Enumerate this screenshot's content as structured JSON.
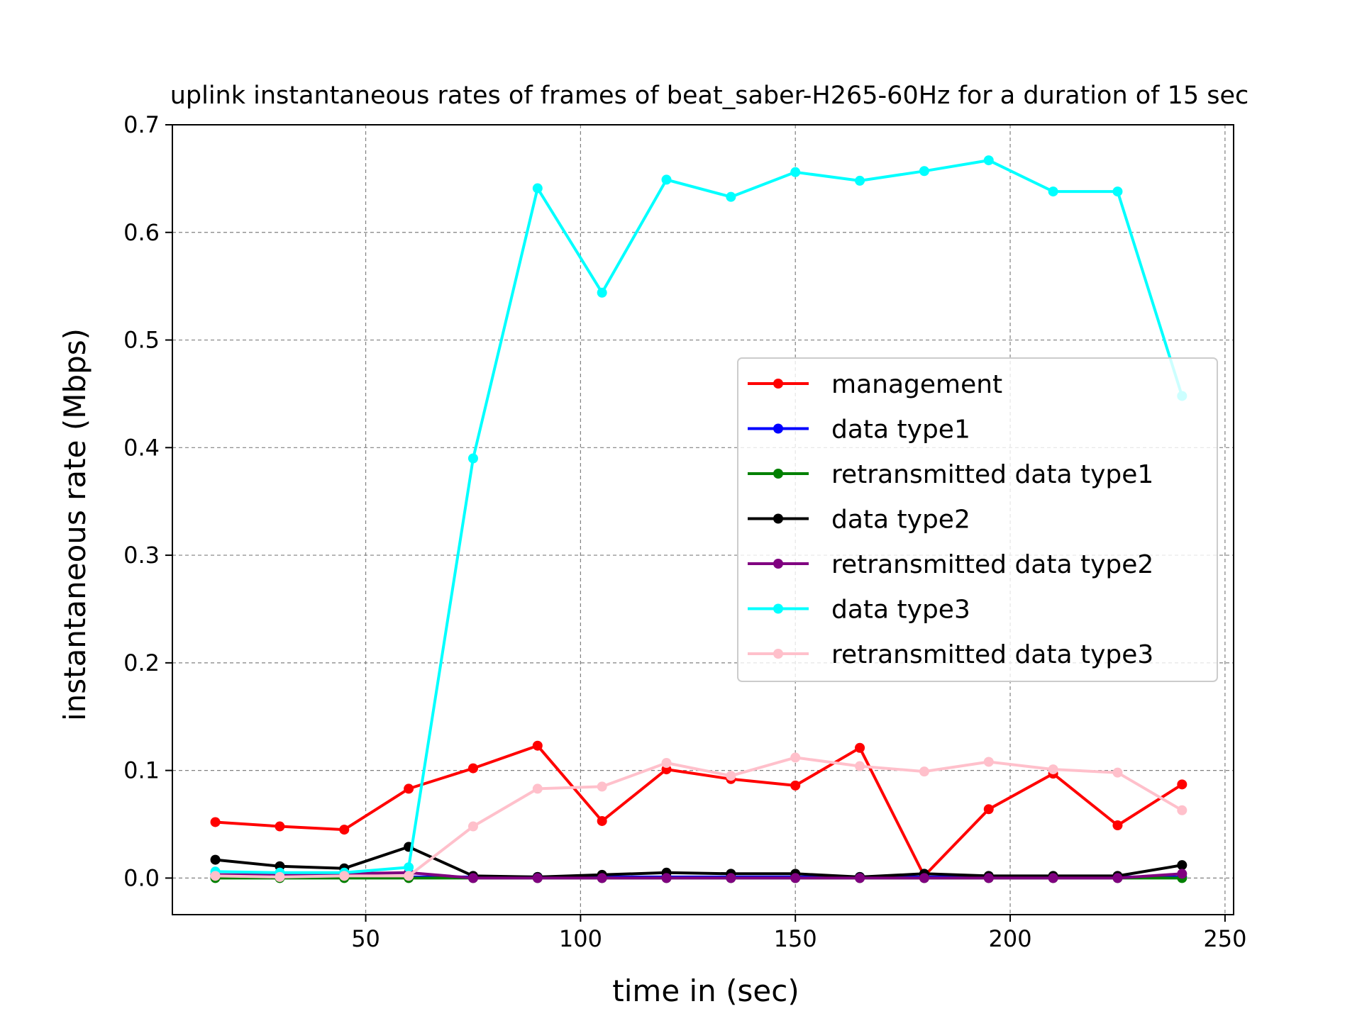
{
  "chart_data": {
    "type": "line",
    "title": "uplink instantaneous rates of frames of beat_saber-H265-60Hz for a duration of 15 sec",
    "xlabel": "time in (sec)",
    "ylabel": "instantaneous rate (Mbps)",
    "xlim": [
      5,
      252
    ],
    "ylim": [
      -0.034,
      0.7
    ],
    "xticks": [
      50,
      100,
      150,
      200,
      250
    ],
    "xtick_labels": [
      "50",
      "100",
      "150",
      "200",
      "250"
    ],
    "yticks": [
      0.0,
      0.1,
      0.2,
      0.3,
      0.4,
      0.5,
      0.6,
      0.7
    ],
    "ytick_labels": [
      "0.0",
      "0.1",
      "0.2",
      "0.3",
      "0.4",
      "0.5",
      "0.6",
      "0.7"
    ],
    "grid": true,
    "legend_position": "center-right",
    "x": [
      15,
      30,
      45,
      60,
      75,
      90,
      105,
      120,
      135,
      150,
      165,
      180,
      195,
      210,
      225,
      240
    ],
    "series": [
      {
        "name": "management",
        "color": "#ff0000",
        "values": [
          0.052,
          0.048,
          0.045,
          0.083,
          0.102,
          0.123,
          0.053,
          0.101,
          0.092,
          0.086,
          0.121,
          0.002,
          0.064,
          0.097,
          0.049,
          0.087
        ]
      },
      {
        "name": "data type1",
        "color": "#0000ff",
        "values": [
          0.001,
          0.001,
          0.001,
          0.001,
          0.001,
          0.001,
          0.001,
          0.001,
          0.001,
          0.001,
          0.001,
          0.001,
          0.001,
          0.001,
          0.001,
          0.001
        ]
      },
      {
        "name": "retransmitted data type1",
        "color": "#008000",
        "values": [
          0.0,
          0.0,
          0.0,
          0.0,
          0.0,
          0.0,
          0.0,
          0.0,
          0.0,
          0.0,
          0.0,
          0.0,
          0.0,
          0.0,
          0.0,
          0.0
        ]
      },
      {
        "name": "data type2",
        "color": "#000000",
        "values": [
          0.017,
          0.011,
          0.009,
          0.029,
          0.002,
          0.001,
          0.003,
          0.005,
          0.004,
          0.004,
          0.001,
          0.004,
          0.002,
          0.002,
          0.002,
          0.012
        ]
      },
      {
        "name": "retransmitted data type2",
        "color": "#800080",
        "values": [
          0.003,
          0.003,
          0.004,
          0.005,
          0.0,
          0.0,
          0.0,
          0.0,
          0.0,
          0.0,
          0.0,
          0.0,
          0.0,
          0.0,
          0.0,
          0.004
        ]
      },
      {
        "name": "data type3",
        "color": "#00ffff",
        "values": [
          0.006,
          0.005,
          0.005,
          0.01,
          0.39,
          0.641,
          0.544,
          0.649,
          0.633,
          0.656,
          0.648,
          0.657,
          0.667,
          0.638,
          0.638,
          0.448
        ]
      },
      {
        "name": "retransmitted data type3",
        "color": "#ffc0cb",
        "values": [
          0.002,
          0.001,
          0.002,
          0.002,
          0.048,
          0.083,
          0.085,
          0.107,
          0.095,
          0.112,
          0.104,
          0.099,
          0.108,
          0.101,
          0.098,
          0.063
        ]
      }
    ]
  }
}
